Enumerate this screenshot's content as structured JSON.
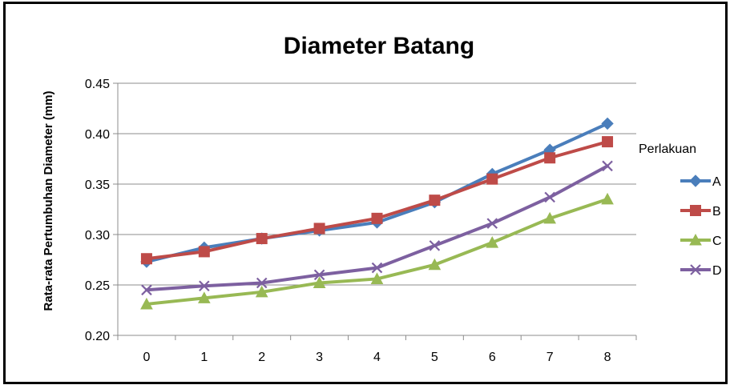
{
  "chart_data": {
    "type": "line",
    "title": "Diameter Batang",
    "xlabel": "",
    "ylabel": "Rata-rata Pertumbuhan Diameter (mm)",
    "x": [
      0,
      1,
      2,
      3,
      4,
      5,
      6,
      7,
      8
    ],
    "ylim": [
      0.2,
      0.45
    ],
    "yticks": [
      "0.20",
      "0.25",
      "0.30",
      "0.35",
      "0.40",
      "0.45"
    ],
    "grid": true,
    "legend_title": "Perlakuan",
    "legend_position": "right",
    "series": [
      {
        "name": "A",
        "color": "#4A7EBB",
        "marker": "diamond",
        "values": [
          0.273,
          0.287,
          0.296,
          0.304,
          0.312,
          0.332,
          0.36,
          0.384,
          0.41
        ]
      },
      {
        "name": "B",
        "color": "#BE4B48",
        "marker": "square",
        "values": [
          0.276,
          0.283,
          0.296,
          0.306,
          0.316,
          0.334,
          0.355,
          0.376,
          0.392
        ]
      },
      {
        "name": "C",
        "color": "#98B954",
        "marker": "triangle",
        "values": [
          0.231,
          0.237,
          0.243,
          0.252,
          0.256,
          0.27,
          0.292,
          0.316,
          0.335
        ]
      },
      {
        "name": "D",
        "color": "#7D60A0",
        "marker": "x",
        "values": [
          0.245,
          0.249,
          0.252,
          0.26,
          0.267,
          0.289,
          0.311,
          0.337,
          0.368
        ]
      }
    ]
  }
}
